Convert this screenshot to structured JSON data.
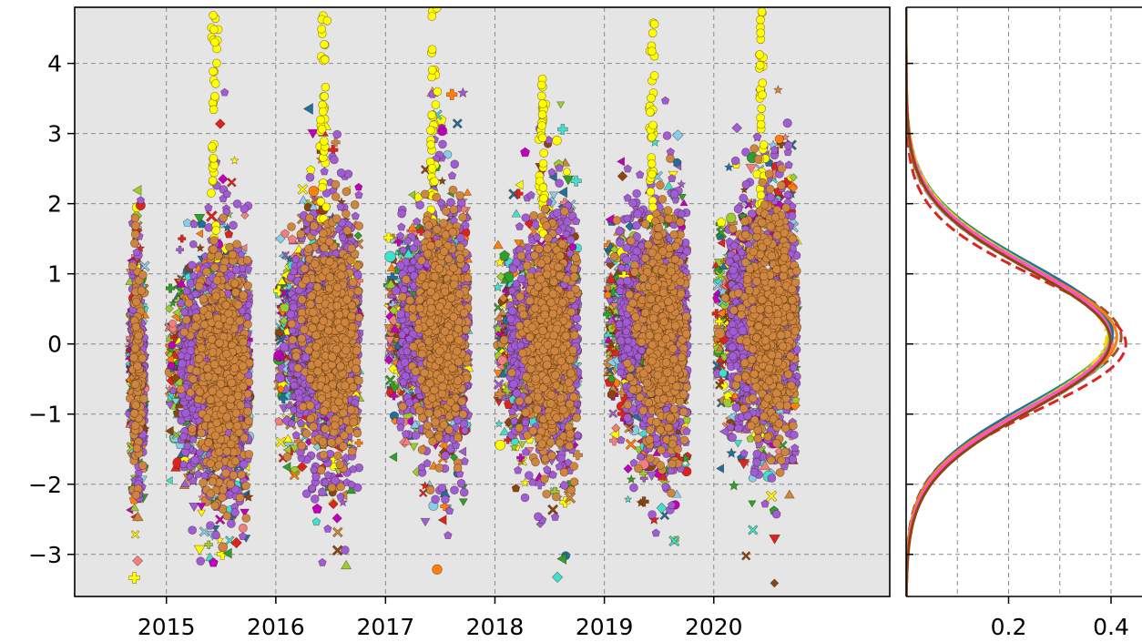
{
  "chart_data": [
    {
      "type": "scatter",
      "title": "",
      "xlabel": "",
      "ylabel": "",
      "x_axis": "date",
      "xlim": [
        "2014-03-01",
        "2021-08-10"
      ],
      "ylim": [
        -3.6,
        4.8
      ],
      "x_ticks": [
        "2015",
        "2016",
        "2017",
        "2018",
        "2019",
        "2020"
      ],
      "y_ticks": [
        -3,
        -2,
        -1,
        0,
        1,
        2,
        3,
        4
      ],
      "y_tick_labels": [
        "−3",
        "−2",
        "−1",
        "0",
        "1",
        "2",
        "3",
        "4"
      ],
      "grid": true,
      "background": "#e5e5e5",
      "clusters": [
        {
          "start": "2014-09-01",
          "end": "2014-10-20",
          "center": "2014-09-25",
          "y_center": -0.35,
          "y_spread": 0.9,
          "y_min": -3.5,
          "y_max": 2.6
        },
        {
          "start": "2015-01-10",
          "end": "2015-10-05",
          "center": "2015-07-10",
          "y_center": -0.35,
          "y_spread": 1.0,
          "y_min": -3.6,
          "y_max": 4.8
        },
        {
          "start": "2016-01-10",
          "end": "2016-10-05",
          "center": "2016-07-10",
          "y_center": 0.05,
          "y_spread": 1.0,
          "y_min": -3.6,
          "y_max": 4.8
        },
        {
          "start": "2017-01-10",
          "end": "2017-10-05",
          "center": "2017-07-10",
          "y_center": 0.25,
          "y_spread": 0.95,
          "y_min": -3.6,
          "y_max": 4.8
        },
        {
          "start": "2018-01-10",
          "end": "2018-10-05",
          "center": "2018-07-10",
          "y_center": 0.05,
          "y_spread": 0.95,
          "y_min": -3.6,
          "y_max": 3.9
        },
        {
          "start": "2019-01-10",
          "end": "2019-10-05",
          "center": "2019-07-10",
          "y_center": 0.2,
          "y_spread": 1.0,
          "y_min": -3.6,
          "y_max": 4.6
        },
        {
          "start": "2020-01-10",
          "end": "2020-10-05",
          "center": "2020-07-10",
          "y_center": 0.35,
          "y_spread": 1.0,
          "y_min": -3.6,
          "y_max": 4.8
        }
      ],
      "series_colors": [
        "#a05bd6",
        "#cd853f",
        "#ff7f0e",
        "#ffff00",
        "#1f6f9f",
        "#2ca02c",
        "#40e0d0",
        "#f08080",
        "#c000c0",
        "#9acd32",
        "#8b4513",
        "#dd2222",
        "#87ceeb"
      ],
      "marker_shapes": [
        "pentagon",
        "circle",
        "diamond",
        "triangle-down",
        "triangle-up",
        "plus",
        "star",
        "x",
        "triangle-left"
      ]
    },
    {
      "type": "line",
      "title": "",
      "xlabel": "",
      "ylabel": "",
      "orientation": "vertical-density",
      "x_ticks": [
        "0.2",
        "0.4"
      ],
      "xlim": [
        0,
        0.48
      ],
      "ylim": [
        -3.6,
        4.8
      ],
      "grid": true,
      "background": "#ffffff",
      "curves": [
        {
          "color": "#dd2222",
          "style": "dashed",
          "mean": 0.0,
          "sd": 0.93
        },
        {
          "color": "#a0522d",
          "style": "dashed",
          "mean": 0.1,
          "sd": 0.95
        },
        {
          "color": "#40e0d0",
          "style": "dashdot",
          "mean": 0.05,
          "sd": 0.98
        },
        {
          "color": "#f08080",
          "style": "solid",
          "mean": 0.05,
          "sd": 0.99
        },
        {
          "color": "#cd853f",
          "style": "solid",
          "mean": 0.05,
          "sd": 1.0
        },
        {
          "color": "#2ca02c",
          "style": "solid",
          "mean": 0.15,
          "sd": 1.0
        },
        {
          "color": "#1f6f9f",
          "style": "solid",
          "mean": 0.15,
          "sd": 0.99
        },
        {
          "color": "#9acd32",
          "style": "solid",
          "mean": 0.12,
          "sd": 1.01
        },
        {
          "color": "#ff7f0e",
          "style": "solid",
          "mean": 0.1,
          "sd": 0.97
        },
        {
          "color": "#ffd700",
          "style": "dashdot",
          "mean": 0.1,
          "sd": 1.02
        },
        {
          "color": "#ff4fd8",
          "style": "solid",
          "mean": 0.1,
          "sd": 1.0
        },
        {
          "color": "#8b4513",
          "style": "solid",
          "mean": 0.05,
          "sd": 1.0
        }
      ]
    }
  ]
}
